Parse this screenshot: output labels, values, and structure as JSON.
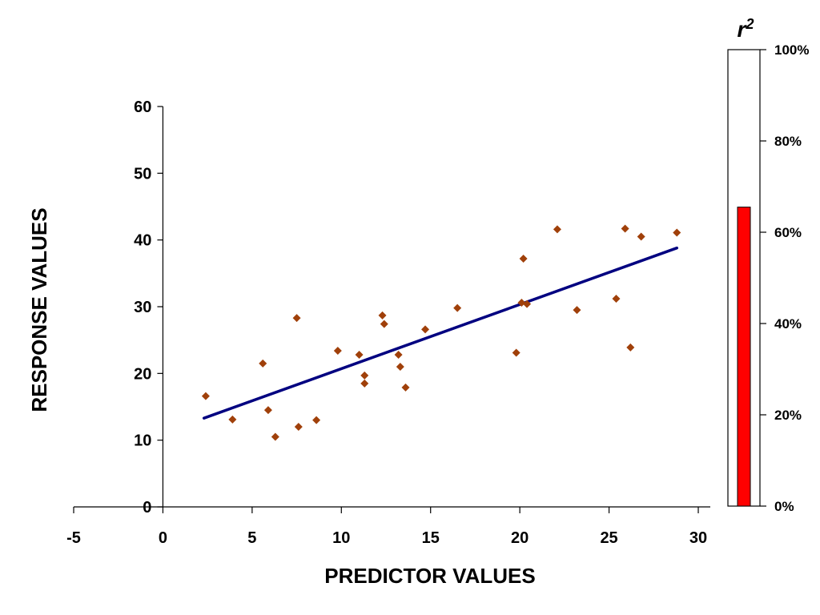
{
  "chart_data": [
    {
      "type": "scatter",
      "xlabel": "PREDICTOR VALUES",
      "ylabel": "RESPONSE VALUES",
      "xlim": [
        -5,
        30
      ],
      "ylim": [
        0,
        60
      ],
      "x_ticks": [
        "-5",
        "0",
        "5",
        "10",
        "15",
        "20",
        "25",
        "30"
      ],
      "y_ticks": [
        "0",
        "10",
        "20",
        "30",
        "40",
        "50",
        "60"
      ],
      "colors": {
        "points": "#A0400A",
        "trendline": "#000080",
        "axis": "#000000"
      },
      "series": [
        {
          "points": [
            [
              2.4,
              16.6
            ],
            [
              3.9,
              13.1
            ],
            [
              5.6,
              21.5
            ],
            [
              5.9,
              14.5
            ],
            [
              6.3,
              10.5
            ],
            [
              7.5,
              28.3
            ],
            [
              7.6,
              12.0
            ],
            [
              8.6,
              13.0
            ],
            [
              9.8,
              23.4
            ],
            [
              11.0,
              22.8
            ],
            [
              11.3,
              19.7
            ],
            [
              11.3,
              18.5
            ],
            [
              12.3,
              28.7
            ],
            [
              12.4,
              27.4
            ],
            [
              13.2,
              22.8
            ],
            [
              13.3,
              21.0
            ],
            [
              13.6,
              17.9
            ],
            [
              14.7,
              26.6
            ],
            [
              16.5,
              29.8
            ],
            [
              19.8,
              23.1
            ],
            [
              20.1,
              30.6
            ],
            [
              20.2,
              37.2
            ],
            [
              20.4,
              30.4
            ],
            [
              22.1,
              41.6
            ],
            [
              23.2,
              29.5
            ],
            [
              25.4,
              31.2
            ],
            [
              25.9,
              41.7
            ],
            [
              26.2,
              23.9
            ],
            [
              26.8,
              40.5
            ],
            [
              28.8,
              41.1
            ]
          ]
        }
      ],
      "trendline": {
        "x": [
          2.3,
          28.8
        ],
        "y": [
          13.3,
          38.8
        ]
      }
    },
    {
      "type": "bar",
      "title": "r",
      "title_superscript": "2",
      "categories": [
        ""
      ],
      "values": [
        65.5
      ],
      "ylim": [
        0,
        100
      ],
      "y_ticks": [
        "0%",
        "20%",
        "40%",
        "60%",
        "80%",
        "100%"
      ],
      "colors": {
        "bar": "#FF0000"
      }
    }
  ]
}
